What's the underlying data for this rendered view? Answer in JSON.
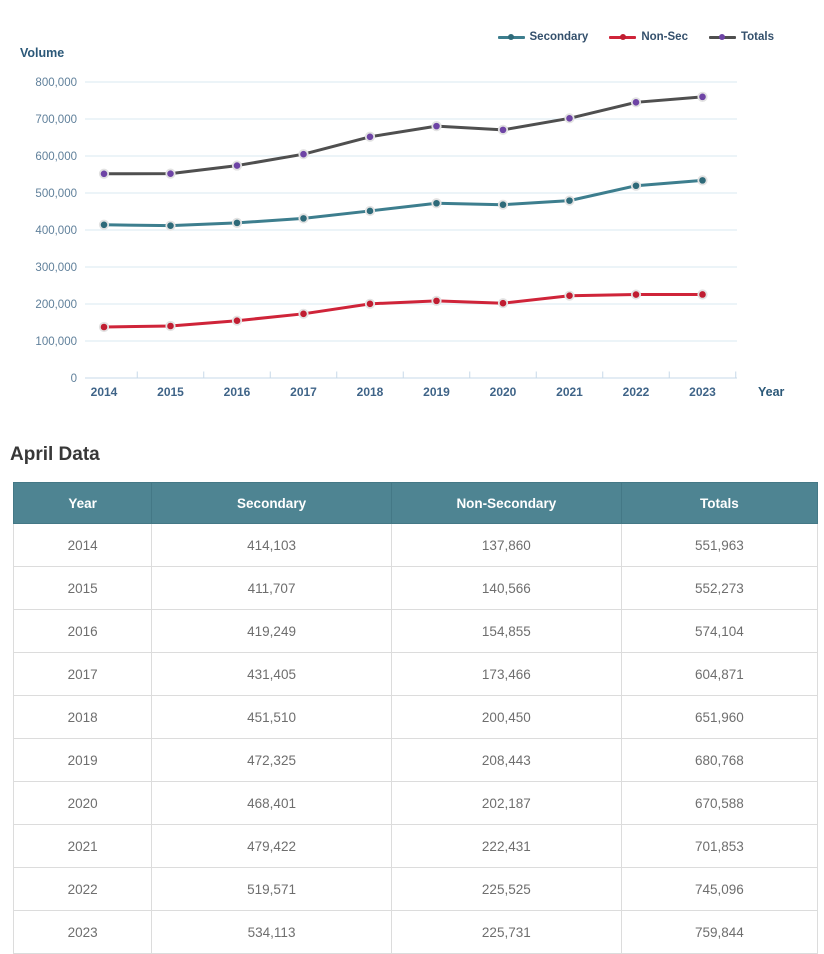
{
  "chart_data": {
    "type": "line",
    "title": "",
    "xlabel": "Year",
    "ylabel": "Volume",
    "x": [
      "2014",
      "2015",
      "2016",
      "2017",
      "2018",
      "2019",
      "2020",
      "2021",
      "2022",
      "2023"
    ],
    "series": [
      {
        "name": "Secondary",
        "color": "#3d7e8e",
        "marker_color": "#2e6a79",
        "values": [
          414103,
          411707,
          419249,
          431405,
          451510,
          472325,
          468401,
          479422,
          519571,
          534113
        ]
      },
      {
        "name": "Non-Sec",
        "color": "#cf2439",
        "marker_color": "#c01d31",
        "values": [
          137860,
          140566,
          154855,
          173466,
          200450,
          208443,
          202187,
          222431,
          225525,
          225731
        ]
      },
      {
        "name": "Totals",
        "color": "#4f4f4f",
        "marker_color": "#6e44a5",
        "values": [
          551963,
          552273,
          574104,
          604871,
          651960,
          680768,
          670588,
          701853,
          745096,
          759844
        ]
      }
    ],
    "ylim": [
      0,
      800000
    ],
    "ytick_step": 100000,
    "grid": true,
    "legend_position": "top-right",
    "gridline_color": "#d8e9f1",
    "axis_line_color": "#c7d9e8"
  },
  "table": {
    "title": "April Data",
    "columns": [
      "Year",
      "Secondary",
      "Non-Secondary",
      "Totals"
    ],
    "rows": [
      [
        "2014",
        "414,103",
        "137,860",
        "551,963"
      ],
      [
        "2015",
        "411,707",
        "140,566",
        "552,273"
      ],
      [
        "2016",
        "419,249",
        "154,855",
        "574,104"
      ],
      [
        "2017",
        "431,405",
        "173,466",
        "604,871"
      ],
      [
        "2018",
        "451,510",
        "200,450",
        "651,960"
      ],
      [
        "2019",
        "472,325",
        "208,443",
        "680,768"
      ],
      [
        "2020",
        "468,401",
        "202,187",
        "670,588"
      ],
      [
        "2021",
        "479,422",
        "222,431",
        "701,853"
      ],
      [
        "2022",
        "519,571",
        "225,525",
        "745,096"
      ],
      [
        "2023",
        "534,113",
        "225,731",
        "759,844"
      ]
    ]
  },
  "colors": {
    "table_header_bg": "#4e8492",
    "table_header_text": "#ffffff",
    "table_border": "#dcdcdc",
    "cell_text": "#6e6e6e",
    "axis_title_text": "#2b5878",
    "x_tick_text": "#3f6488",
    "y_tick_text": "#60809b",
    "legend_text": "#34506c"
  }
}
